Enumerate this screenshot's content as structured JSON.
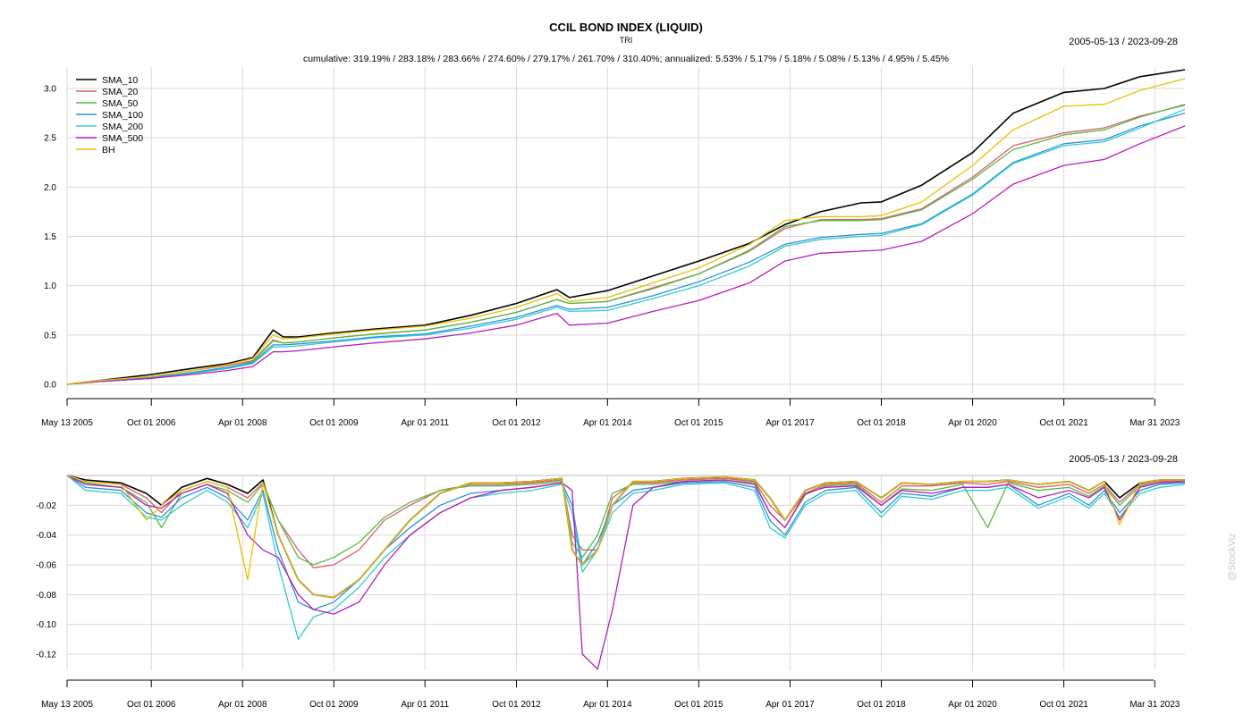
{
  "chart_data": [
    {
      "type": "line",
      "title": "CCIL BOND INDEX (LIQUID)",
      "subtitle": "TRI",
      "date_range": "2005-05-13 / 2023-09-28",
      "stats": "cumulative: 319.19% / 283.18% / 283.66% / 274.60% / 279.17% / 261.70% / 310.40%; annualized: 5.53% / 5.17% / 5.18% / 5.08% / 5.13% / 4.95% / 5.45%",
      "x_tick_labels": [
        "May 13 2005",
        "Oct 01 2006",
        "Apr 01 2008",
        "Oct 01 2009",
        "Apr 01 2011",
        "Oct 01 2012",
        "Apr 01 2014",
        "Oct 01 2015",
        "Apr 01 2017",
        "Oct 01 2018",
        "Apr 01 2020",
        "Oct 01 2021",
        "Mar 31 2023"
      ],
      "x_range": [
        "2005-05-13",
        "2023-09-28"
      ],
      "ylim": [
        0,
        3.2
      ],
      "y_ticks": [
        "0.0",
        "0.5",
        "1.0",
        "1.5",
        "2.0",
        "2.5",
        "3.0"
      ],
      "y_tick_values": [
        0,
        0.5,
        1.0,
        1.5,
        2.0,
        2.5,
        3.0
      ],
      "grid": true,
      "legend_position": "top-left",
      "x_dates": [
        "2005-05-13",
        "2005-12-01",
        "2006-10-01",
        "2007-06-01",
        "2008-01-01",
        "2008-06-01",
        "2008-10-01",
        "2008-12-01",
        "2009-03-01",
        "2009-10-01",
        "2010-06-01",
        "2011-04-01",
        "2012-01-01",
        "2012-10-01",
        "2013-06-01",
        "2013-08-15",
        "2014-04-01",
        "2015-01-01",
        "2015-10-01",
        "2016-08-01",
        "2017-03-01",
        "2017-10-01",
        "2018-06-01",
        "2018-10-01",
        "2019-06-01",
        "2020-04-01",
        "2020-12-01",
        "2021-10-01",
        "2022-06-01",
        "2023-01-01",
        "2023-09-28"
      ],
      "series": [
        {
          "name": "SMA_10",
          "color": "#000000",
          "values": [
            0,
            0.04,
            0.1,
            0.16,
            0.21,
            0.27,
            0.55,
            0.48,
            0.48,
            0.52,
            0.56,
            0.6,
            0.7,
            0.82,
            0.96,
            0.88,
            0.95,
            1.1,
            1.25,
            1.43,
            1.62,
            1.75,
            1.84,
            1.85,
            2.02,
            2.35,
            2.75,
            2.96,
            3.0,
            3.12,
            3.19
          ]
        },
        {
          "name": "SMA_20",
          "color": "#d95f6e",
          "values": [
            0,
            0.04,
            0.08,
            0.14,
            0.19,
            0.24,
            0.45,
            0.42,
            0.43,
            0.47,
            0.51,
            0.55,
            0.63,
            0.73,
            0.86,
            0.82,
            0.84,
            0.98,
            1.12,
            1.35,
            1.58,
            1.67,
            1.67,
            1.68,
            1.78,
            2.1,
            2.42,
            2.55,
            2.6,
            2.72,
            2.83
          ]
        },
        {
          "name": "SMA_50",
          "color": "#55bb44",
          "values": [
            0,
            0.03,
            0.06,
            0.12,
            0.17,
            0.23,
            0.44,
            0.42,
            0.43,
            0.47,
            0.51,
            0.55,
            0.63,
            0.73,
            0.86,
            0.82,
            0.84,
            0.97,
            1.12,
            1.36,
            1.6,
            1.66,
            1.66,
            1.67,
            1.77,
            2.08,
            2.38,
            2.53,
            2.58,
            2.71,
            2.84
          ]
        },
        {
          "name": "SMA_100",
          "color": "#2f8fdd",
          "values": [
            0,
            0.03,
            0.07,
            0.12,
            0.17,
            0.22,
            0.4,
            0.4,
            0.41,
            0.44,
            0.48,
            0.51,
            0.59,
            0.68,
            0.8,
            0.76,
            0.78,
            0.9,
            1.04,
            1.24,
            1.42,
            1.49,
            1.52,
            1.53,
            1.63,
            1.93,
            2.25,
            2.44,
            2.48,
            2.62,
            2.75
          ]
        },
        {
          "name": "SMA_200",
          "color": "#33cccc",
          "values": [
            0,
            0.03,
            0.06,
            0.11,
            0.16,
            0.21,
            0.38,
            0.38,
            0.39,
            0.43,
            0.47,
            0.5,
            0.57,
            0.66,
            0.78,
            0.74,
            0.75,
            0.87,
            1.0,
            1.2,
            1.4,
            1.47,
            1.5,
            1.51,
            1.62,
            1.92,
            2.24,
            2.42,
            2.46,
            2.6,
            2.79
          ]
        },
        {
          "name": "SMA_500",
          "color": "#b81cb8",
          "values": [
            0,
            0.03,
            0.06,
            0.1,
            0.14,
            0.18,
            0.33,
            0.33,
            0.34,
            0.38,
            0.42,
            0.46,
            0.52,
            0.6,
            0.72,
            0.6,
            0.62,
            0.74,
            0.85,
            1.03,
            1.25,
            1.33,
            1.35,
            1.36,
            1.45,
            1.73,
            2.03,
            2.22,
            2.28,
            2.44,
            2.62
          ]
        },
        {
          "name": "BH",
          "color": "#e8c000",
          "values": [
            0,
            0.04,
            0.08,
            0.14,
            0.2,
            0.26,
            0.5,
            0.46,
            0.47,
            0.51,
            0.55,
            0.59,
            0.67,
            0.78,
            0.92,
            0.84,
            0.88,
            1.03,
            1.18,
            1.42,
            1.66,
            1.7,
            1.7,
            1.71,
            1.85,
            2.22,
            2.58,
            2.82,
            2.84,
            2.98,
            3.1
          ]
        }
      ]
    },
    {
      "type": "line",
      "title": "",
      "date_range": "2005-05-13 / 2023-09-28",
      "x_tick_labels": [
        "May 13 2005",
        "Oct 01 2006",
        "Apr 01 2008",
        "Oct 01 2009",
        "Apr 01 2011",
        "Oct 01 2012",
        "Apr 01 2014",
        "Oct 01 2015",
        "Apr 01 2017",
        "Oct 01 2018",
        "Apr 01 2020",
        "Oct 01 2021",
        "Mar 31 2023"
      ],
      "x_range": [
        "2005-05-13",
        "2023-09-28"
      ],
      "ylim": [
        -0.13,
        0
      ],
      "y_ticks": [
        "-0.02",
        "-0.04",
        "-0.06",
        "-0.08",
        "-0.10",
        "-0.12"
      ],
      "y_tick_values": [
        -0.02,
        -0.04,
        -0.06,
        -0.08,
        -0.1,
        -0.12
      ],
      "grid": true,
      "x_dates": [
        "2005-05-13",
        "2005-09-01",
        "2006-04-01",
        "2006-09-01",
        "2006-12-01",
        "2007-04-01",
        "2007-09-01",
        "2008-01-01",
        "2008-05-01",
        "2008-08-01",
        "2008-11-01",
        "2009-03-01",
        "2009-06-01",
        "2009-10-01",
        "2010-03-01",
        "2010-08-01",
        "2011-01-01",
        "2011-07-01",
        "2012-01-01",
        "2012-07-01",
        "2013-01-01",
        "2013-07-01",
        "2013-09-01",
        "2013-11-01",
        "2014-02-01",
        "2014-05-01",
        "2014-09-01",
        "2015-01-01",
        "2015-07-01",
        "2016-03-01",
        "2016-09-01",
        "2016-12-01",
        "2017-03-01",
        "2017-07-01",
        "2017-11-01",
        "2018-05-01",
        "2018-10-01",
        "2019-02-01",
        "2019-08-01",
        "2020-02-01",
        "2020-07-01",
        "2020-11-01",
        "2021-05-01",
        "2021-11-01",
        "2022-03-01",
        "2022-06-01",
        "2022-09-01",
        "2023-01-01",
        "2023-05-01",
        "2023-09-28"
      ],
      "series": [
        {
          "name": "SMA_10",
          "color": "#000000",
          "values": [
            0,
            -0.003,
            -0.005,
            -0.012,
            -0.02,
            -0.008,
            -0.002,
            -0.006,
            -0.012,
            -0.003,
            -0.04,
            -0.07,
            -0.08,
            -0.082,
            -0.07,
            -0.05,
            -0.03,
            -0.012,
            -0.005,
            -0.005,
            -0.004,
            -0.002,
            -0.05,
            -0.06,
            -0.05,
            -0.02,
            -0.004,
            -0.004,
            -0.002,
            -0.001,
            -0.003,
            -0.015,
            -0.03,
            -0.01,
            -0.005,
            -0.004,
            -0.015,
            -0.005,
            -0.006,
            -0.004,
            -0.004,
            -0.003,
            -0.006,
            -0.004,
            -0.01,
            -0.004,
            -0.015,
            -0.005,
            -0.003,
            -0.003
          ]
        },
        {
          "name": "SMA_20",
          "color": "#d95f6e",
          "values": [
            0,
            -0.004,
            -0.006,
            -0.015,
            -0.025,
            -0.01,
            -0.004,
            -0.008,
            -0.015,
            -0.005,
            -0.03,
            -0.05,
            -0.062,
            -0.06,
            -0.05,
            -0.03,
            -0.02,
            -0.01,
            -0.006,
            -0.006,
            -0.005,
            -0.003,
            -0.04,
            -0.05,
            -0.05,
            -0.015,
            -0.005,
            -0.005,
            -0.003,
            -0.002,
            -0.004,
            -0.02,
            -0.03,
            -0.012,
            -0.006,
            -0.005,
            -0.018,
            -0.007,
            -0.007,
            -0.005,
            -0.006,
            -0.004,
            -0.008,
            -0.006,
            -0.012,
            -0.006,
            -0.018,
            -0.006,
            -0.004,
            -0.004
          ]
        },
        {
          "name": "SMA_50",
          "color": "#55bb44",
          "values": [
            0,
            -0.005,
            -0.008,
            -0.018,
            -0.035,
            -0.012,
            -0.006,
            -0.01,
            -0.018,
            -0.006,
            -0.03,
            -0.055,
            -0.06,
            -0.055,
            -0.045,
            -0.028,
            -0.018,
            -0.01,
            -0.007,
            -0.007,
            -0.006,
            -0.004,
            -0.045,
            -0.055,
            -0.04,
            -0.012,
            -0.006,
            -0.006,
            -0.004,
            -0.003,
            -0.005,
            -0.025,
            -0.035,
            -0.013,
            -0.007,
            -0.006,
            -0.02,
            -0.009,
            -0.01,
            -0.006,
            -0.035,
            -0.005,
            -0.01,
            -0.008,
            -0.014,
            -0.007,
            -0.02,
            -0.007,
            -0.005,
            -0.004
          ]
        },
        {
          "name": "SMA_100",
          "color": "#2f8fdd",
          "values": [
            0,
            -0.008,
            -0.01,
            -0.025,
            -0.028,
            -0.015,
            -0.008,
            -0.015,
            -0.03,
            -0.01,
            -0.05,
            -0.085,
            -0.09,
            -0.085,
            -0.07,
            -0.05,
            -0.035,
            -0.02,
            -0.012,
            -0.01,
            -0.008,
            -0.005,
            -0.02,
            -0.06,
            -0.045,
            -0.02,
            -0.01,
            -0.008,
            -0.005,
            -0.004,
            -0.008,
            -0.03,
            -0.04,
            -0.018,
            -0.01,
            -0.008,
            -0.025,
            -0.012,
            -0.014,
            -0.008,
            -0.008,
            -0.006,
            -0.02,
            -0.012,
            -0.02,
            -0.01,
            -0.025,
            -0.01,
            -0.006,
            -0.005
          ]
        },
        {
          "name": "SMA_200",
          "color": "#33cccc",
          "values": [
            0,
            -0.01,
            -0.012,
            -0.028,
            -0.03,
            -0.02,
            -0.01,
            -0.018,
            -0.035,
            -0.012,
            -0.06,
            -0.11,
            -0.095,
            -0.09,
            -0.075,
            -0.055,
            -0.04,
            -0.025,
            -0.015,
            -0.012,
            -0.01,
            -0.006,
            -0.025,
            -0.065,
            -0.05,
            -0.025,
            -0.012,
            -0.01,
            -0.006,
            -0.005,
            -0.01,
            -0.035,
            -0.042,
            -0.02,
            -0.012,
            -0.01,
            -0.028,
            -0.014,
            -0.016,
            -0.01,
            -0.01,
            -0.008,
            -0.022,
            -0.014,
            -0.022,
            -0.012,
            -0.028,
            -0.012,
            -0.008,
            -0.006
          ]
        },
        {
          "name": "SMA_500",
          "color": "#b81cb8",
          "values": [
            0,
            -0.006,
            -0.008,
            -0.02,
            -0.022,
            -0.012,
            -0.006,
            -0.012,
            -0.04,
            -0.05,
            -0.055,
            -0.08,
            -0.09,
            -0.093,
            -0.085,
            -0.06,
            -0.04,
            -0.025,
            -0.015,
            -0.01,
            -0.008,
            -0.005,
            -0.01,
            -0.12,
            -0.13,
            -0.09,
            -0.02,
            -0.008,
            -0.004,
            -0.003,
            -0.006,
            -0.025,
            -0.035,
            -0.012,
            -0.008,
            -0.007,
            -0.02,
            -0.01,
            -0.012,
            -0.008,
            -0.008,
            -0.006,
            -0.015,
            -0.01,
            -0.015,
            -0.008,
            -0.03,
            -0.008,
            -0.005,
            -0.004
          ]
        },
        {
          "name": "BH",
          "color": "#e8c000",
          "values": [
            0,
            -0.004,
            -0.006,
            -0.03,
            -0.02,
            -0.01,
            -0.004,
            -0.008,
            -0.07,
            -0.005,
            -0.04,
            -0.07,
            -0.08,
            -0.082,
            -0.07,
            -0.05,
            -0.03,
            -0.012,
            -0.005,
            -0.005,
            -0.004,
            -0.002,
            -0.05,
            -0.06,
            -0.05,
            -0.02,
            -0.004,
            -0.004,
            -0.002,
            -0.001,
            -0.003,
            -0.015,
            -0.03,
            -0.01,
            -0.005,
            -0.004,
            -0.015,
            -0.005,
            -0.006,
            -0.004,
            -0.004,
            -0.003,
            -0.006,
            -0.004,
            -0.01,
            -0.004,
            -0.033,
            -0.005,
            -0.003,
            -0.003
          ]
        }
      ]
    }
  ],
  "watermark": "@StockViz"
}
